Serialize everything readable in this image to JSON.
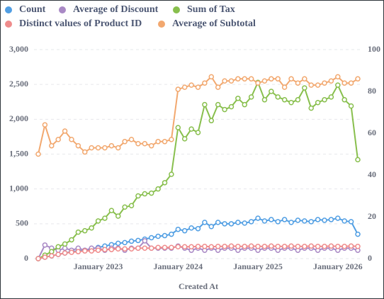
{
  "chart_data": {
    "type": "line",
    "x_label": "Created At",
    "categories": [
      null,
      null,
      null,
      null,
      null,
      null,
      null,
      null,
      null,
      "January 2023",
      null,
      null,
      null,
      null,
      null,
      null,
      null,
      null,
      null,
      null,
      null,
      "January 2024",
      null,
      null,
      null,
      null,
      null,
      null,
      null,
      null,
      null,
      null,
      null,
      "January 2025",
      null,
      null,
      null,
      null,
      null,
      null,
      null,
      null,
      null,
      null,
      null,
      "January 2026",
      null,
      null,
      null
    ],
    "ylim": [
      0,
      3000
    ],
    "yticks": [
      0,
      500,
      {
        "value": 1000,
        "label": "1,000"
      },
      {
        "value": 1500,
        "label": "1,500"
      },
      {
        "value": 2000,
        "label": "2,000"
      },
      {
        "value": 2500,
        "label": "2,500"
      },
      {
        "value": 3000,
        "label": "3,000"
      }
    ],
    "y2lim": [
      0,
      100
    ],
    "y2ticks": [
      0,
      20,
      40,
      60,
      80,
      100
    ],
    "grid": true,
    "series": [
      {
        "name": "Count",
        "color": "#509ee3",
        "values": [
          0,
          20,
          40,
          60,
          80,
          100,
          110,
          120,
          140,
          160,
          180,
          200,
          220,
          230,
          250,
          260,
          280,
          300,
          320,
          330,
          350,
          420,
          400,
          440,
          430,
          520,
          460,
          520,
          500,
          500,
          520,
          510,
          530,
          580,
          540,
          560,
          530,
          560,
          520,
          550,
          540,
          530,
          560,
          550,
          560,
          580,
          540,
          530,
          350
        ]
      },
      {
        "name": "Average of Discount",
        "color": "#a989c5",
        "axis": "y2",
        "values": [
          0,
          6.5,
          5,
          4,
          5,
          4,
          5,
          4,
          5,
          5,
          4,
          5,
          5,
          4,
          5,
          5,
          8.5,
          5,
          5,
          5,
          5,
          6,
          5,
          4,
          5,
          4,
          5,
          4,
          5,
          5,
          4,
          5,
          5,
          4,
          5,
          5,
          4,
          5,
          5,
          4,
          5,
          5,
          4,
          5,
          5,
          4,
          5,
          5,
          4
        ]
      },
      {
        "name": "Sum of Tax",
        "color": "#88bf4d",
        "values": [
          0,
          50,
          100,
          170,
          210,
          270,
          380,
          400,
          440,
          540,
          580,
          690,
          610,
          740,
          760,
          900,
          930,
          940,
          1000,
          1090,
          1210,
          1880,
          1720,
          1860,
          1810,
          2210,
          1980,
          2210,
          2140,
          2180,
          2300,
          2210,
          2320,
          2530,
          2280,
          2400,
          2320,
          2280,
          2240,
          2280,
          2450,
          2160,
          2240,
          2280,
          2320,
          2490,
          2280,
          2190,
          1420
        ]
      },
      {
        "name": "Distinct values of Product ID",
        "color": "#ef8c8c",
        "values": [
          0,
          20,
          40,
          60,
          80,
          90,
          100,
          110,
          110,
          120,
          130,
          130,
          140,
          140,
          140,
          150,
          150,
          150,
          160,
          160,
          160,
          170,
          170,
          170,
          175,
          175,
          170,
          175,
          175,
          180,
          175,
          175,
          180,
          175,
          175,
          180,
          175,
          175,
          180,
          175,
          175,
          180,
          175,
          175,
          180,
          175,
          175,
          180,
          175
        ]
      },
      {
        "name": "Average of Subtotal",
        "color": "#f2a86f",
        "axis": "y2",
        "values": [
          50,
          64,
          54,
          57,
          61,
          57,
          54,
          51,
          53,
          53,
          53,
          54,
          53,
          56,
          57,
          55,
          55,
          54,
          56,
          56,
          57,
          81,
          82,
          83,
          82,
          84,
          87,
          82,
          85,
          85,
          86,
          86,
          86,
          84,
          85,
          86,
          86,
          82,
          86,
          84,
          86,
          83,
          83,
          84,
          85,
          87,
          84,
          84,
          86
        ]
      }
    ]
  }
}
